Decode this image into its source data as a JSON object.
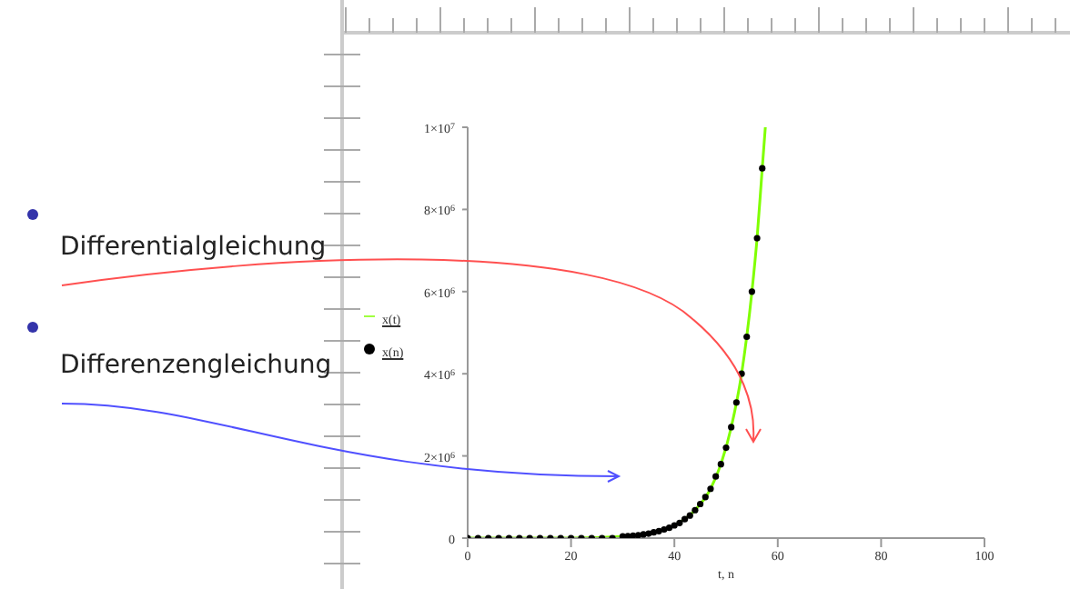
{
  "chart_data": {
    "type": "scatter",
    "xlabel": "t, n",
    "xlim": [
      0,
      100
    ],
    "xticks": [
      0,
      20,
      40,
      60,
      80,
      100
    ],
    "ylim": [
      0,
      10000000
    ],
    "yticks": [
      0,
      {
        "value": 2000000,
        "label": "2×10$^{6}$"
      },
      {
        "value": 4000000,
        "label": "4×10$^{6}$"
      },
      {
        "value": 6000000,
        "label": "6×10$^{6}$"
      },
      {
        "value": 8000000,
        "label": "8×10$^{6}$"
      },
      {
        "value": 10000000,
        "label": "1×10$^{7}$"
      }
    ],
    "grid": false,
    "legend": "left",
    "annotations": [
      "Differentialgleichung",
      "Differenzengleichung"
    ],
    "series": [
      {
        "name": "x(t)",
        "type": "line",
        "color": "#80ff00",
        "marker": "none",
        "line_style": "solid",
        "x": [
          0,
          10,
          20,
          30,
          35,
          40,
          44,
          47,
          49,
          51,
          53,
          55,
          56,
          57,
          57.6
        ],
        "values": [
          0,
          0,
          0,
          40000,
          110000,
          310000,
          680000,
          1200000,
          1800000,
          2700000,
          4000000,
          6000000,
          7300000,
          9000000,
          10000000
        ]
      },
      {
        "name": "x(n)",
        "type": "scatter",
        "color": "#000000",
        "marker": "circle",
        "x": [
          0,
          2,
          4,
          6,
          8,
          10,
          12,
          14,
          16,
          18,
          20,
          22,
          24,
          26,
          28,
          30,
          31,
          32,
          33,
          34,
          35,
          36,
          37,
          38,
          39,
          40,
          41,
          42,
          43,
          44,
          45,
          46,
          47,
          48,
          49,
          50,
          51,
          52,
          53,
          54,
          55,
          56,
          57
        ],
        "values": [
          0,
          0,
          0,
          0,
          0,
          0,
          0,
          0,
          0,
          0,
          0,
          0,
          0,
          0,
          0,
          40000,
          50000,
          60000,
          70000,
          90000,
          110000,
          140000,
          170000,
          210000,
          250000,
          310000,
          370000,
          460000,
          550000,
          680000,
          830000,
          1000000,
          1200000,
          1500000,
          1800000,
          2200000,
          2700000,
          3300000,
          4000000,
          4900000,
          6000000,
          7300000,
          9000000
        ]
      }
    ]
  }
}
